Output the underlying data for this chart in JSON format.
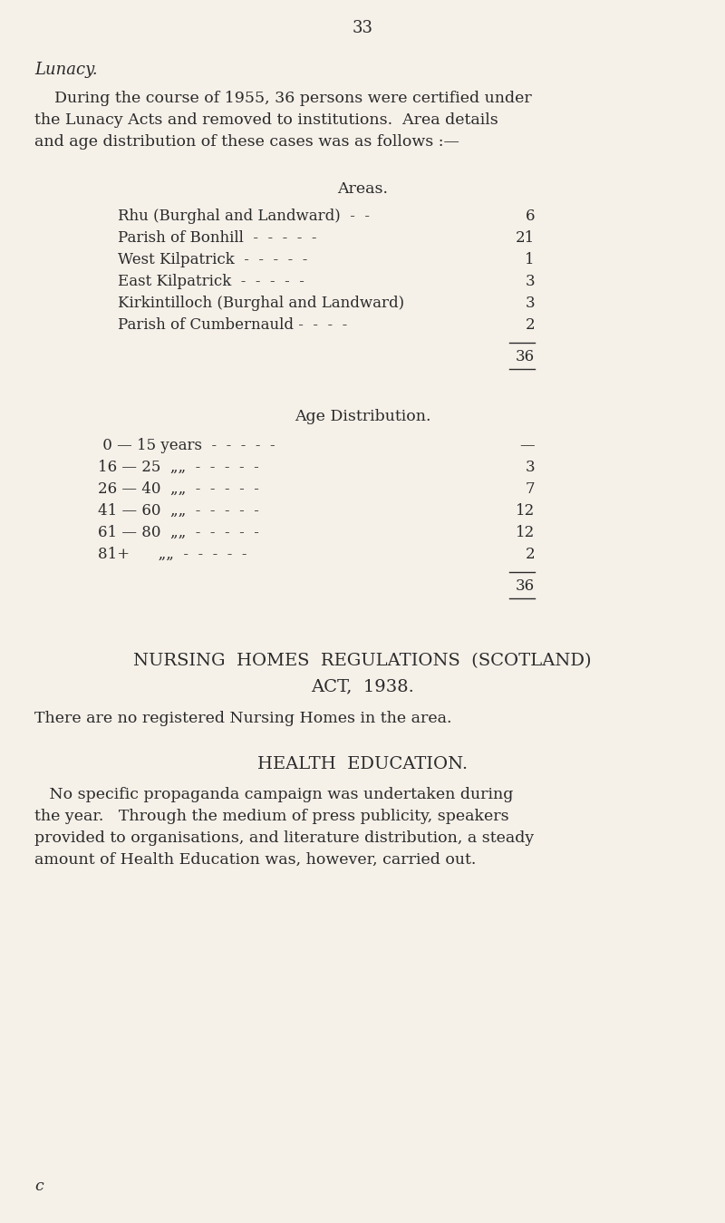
{
  "bg_color": "#f5f0e8",
  "text_color": "#2a2a2a",
  "page_number": "33",
  "section_lunacy_title": "Lunacy.",
  "lunacy_intro_lines": [
    "    During the course of 1955, 36 persons were certified under",
    "the Lunacy Acts and removed to institutions.  Area details",
    "and age distribution of these cases was as follows :—"
  ],
  "areas_heading": "Areas.",
  "areas": [
    {
      "label": "Rhu (Burghal and Landward)  -  -",
      "value": "6"
    },
    {
      "label": "Parish of Bonhill  -  -  -  -  -",
      "value": "21"
    },
    {
      "label": "West Kilpatrick  -  -  -  -  -",
      "value": "1"
    },
    {
      "label": "East Kilpatrick  -  -  -  -  -",
      "value": "3"
    },
    {
      "label": "Kirkintilloch (Burghal and Landward)",
      "value": "3"
    },
    {
      "label": "Parish of Cumbernauld -  -  -  -",
      "value": "2"
    }
  ],
  "areas_total": "36",
  "age_dist_heading": "Age Distribution.",
  "age_rows": [
    {
      "label": " 0 — 15 years  -  -  -  -  -",
      "value": "—"
    },
    {
      "label": "16 — 25  „„  -  -  -  -  -",
      "value": "3"
    },
    {
      "label": "26 — 40  „„  -  -  -  -  -",
      "value": "7"
    },
    {
      "label": "41 — 60  „„  -  -  -  -  -",
      "value": "12"
    },
    {
      "label": "61 — 80  „„  -  -  -  -  -",
      "value": "12"
    },
    {
      "label": "81+      „„  -  -  -  -  -",
      "value": "2"
    }
  ],
  "age_total": "36",
  "nursing_heading_line1": "NURSING  HOMES  REGULATIONS  (SCOTLAND)",
  "nursing_heading_line2": "ACT,  1938.",
  "nursing_body": "There are no registered Nursing Homes in the area.",
  "health_heading": "HEALTH  EDUCATION.",
  "health_body_lines": [
    "   No specific propaganda campaign was undertaken during",
    "the year.   Through the medium of press publicity, speakers",
    "provided to organisations, and literature distribution, a steady",
    "amount of Health Education was, however, carried out."
  ],
  "footer_letter": "c"
}
